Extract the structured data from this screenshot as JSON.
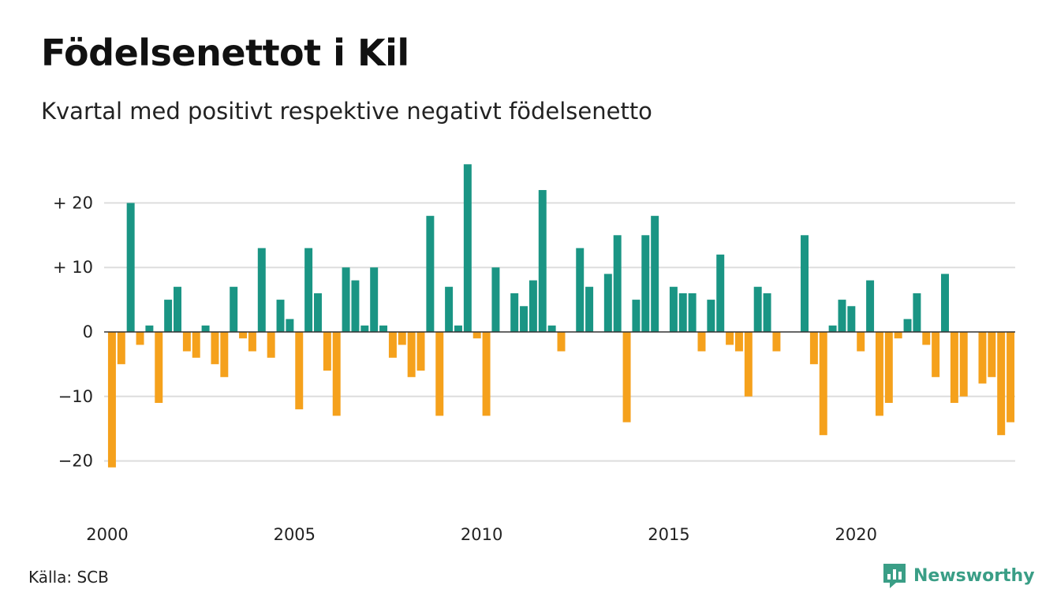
{
  "title": "Födelsenettot i Kil",
  "subtitle": "Kvartal med positivt respektive negativt födelsenetto",
  "source": "Källa: SCB",
  "brand": {
    "name": "Newsworthy",
    "icon": "chart-speech-bubble-icon",
    "color": "#3a9e86"
  },
  "colors": {
    "positive": "#1a9584",
    "negative": "#f5a11c",
    "grid": "#dddddd",
    "zero": "#333333"
  },
  "chart_data": {
    "type": "bar",
    "x_start": "2000 Q1",
    "y_ticks": [
      {
        "value": 20,
        "label": "+ 20"
      },
      {
        "value": 10,
        "label": "+ 10"
      },
      {
        "value": 0,
        "label": "0"
      },
      {
        "value": -10,
        "label": "−10"
      },
      {
        "value": -20,
        "label": "−20"
      }
    ],
    "x_ticks": [
      "2000",
      "2005",
      "2010",
      "2015",
      "2020"
    ],
    "ylim": [
      -25,
      28
    ],
    "grid": true,
    "values": [
      -21,
      -5,
      20,
      -2,
      1,
      -11,
      5,
      7,
      -3,
      -4,
      1,
      -5,
      -7,
      7,
      -1,
      -3,
      13,
      -4,
      5,
      2,
      -12,
      13,
      6,
      -6,
      -13,
      10,
      8,
      1,
      10,
      1,
      -4,
      -2,
      -7,
      -6,
      18,
      -13,
      7,
      1,
      26,
      -1,
      -13,
      10,
      0,
      6,
      4,
      8,
      22,
      1,
      -3,
      0,
      13,
      7,
      0,
      9,
      15,
      -14,
      5,
      15,
      18,
      0,
      7,
      6,
      6,
      -3,
      5,
      12,
      -2,
      -3,
      -10,
      7,
      6,
      -3,
      0,
      0,
      15,
      -5,
      -16,
      1,
      5,
      4,
      -3,
      8,
      -13,
      -11,
      -1,
      2,
      6,
      -2,
      -7,
      9,
      -11,
      -10,
      0,
      -8,
      -7,
      -16,
      -14
    ]
  }
}
